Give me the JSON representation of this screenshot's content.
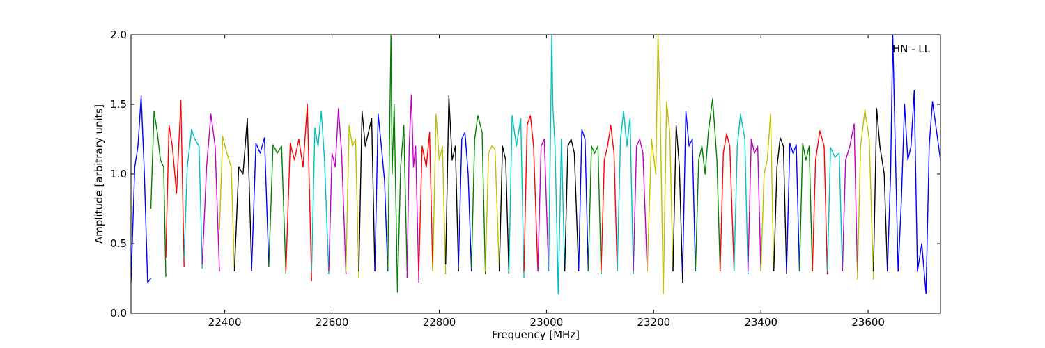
{
  "chart_data": {
    "type": "line",
    "title": "",
    "xlabel": "Frequency [MHz]",
    "ylabel": "Amplitude [arbitrary units]",
    "xlim": [
      22225,
      23735
    ],
    "ylim": [
      0.0,
      2.0
    ],
    "xticks": [
      22400,
      22600,
      22800,
      23000,
      23200,
      23400,
      23600
    ],
    "xtick_labels": [
      "22400",
      "22600",
      "22800",
      "23000",
      "23200",
      "23400",
      "23600"
    ],
    "yticks": [
      0.0,
      0.5,
      1.0,
      1.5,
      2.0
    ],
    "ytick_labels": [
      "0.0",
      "0.5",
      "1.0",
      "1.5",
      "2.0"
    ],
    "grid": false,
    "legend": "none",
    "annotation": "HN - LL",
    "color_cycle": [
      "#0000ff",
      "#008000",
      "#ff0000",
      "#00bfbf",
      "#bf00bf",
      "#bfbf00",
      "#000000"
    ],
    "segments": [
      {
        "color": "#0000ff",
        "x": [
          22225,
          22232,
          22238,
          22244,
          22250,
          22256,
          22262
        ],
        "y": [
          0.22,
          1.05,
          1.2,
          1.56,
          1.0,
          0.22,
          0.25
        ]
      },
      {
        "color": "#008000",
        "x": [
          22262,
          22268,
          22274,
          22280,
          22286,
          22290
        ],
        "y": [
          0.75,
          1.45,
          1.3,
          1.1,
          1.05,
          0.26
        ]
      },
      {
        "color": "#ff0000",
        "x": [
          22290,
          22296,
          22302,
          22310,
          22318,
          22324
        ],
        "y": [
          0.4,
          1.35,
          1.2,
          0.86,
          1.53,
          0.33
        ]
      },
      {
        "color": "#00bfbf",
        "x": [
          22324,
          22330,
          22338,
          22344,
          22352,
          22358
        ],
        "y": [
          0.4,
          1.05,
          1.32,
          1.25,
          1.2,
          0.32
        ]
      },
      {
        "color": "#bf00bf",
        "x": [
          22358,
          22366,
          22374,
          22382,
          22390
        ],
        "y": [
          0.35,
          1.05,
          1.43,
          1.2,
          0.3
        ]
      },
      {
        "color": "#bfbf00",
        "x": [
          22390,
          22396,
          22404,
          22412,
          22418
        ],
        "y": [
          0.6,
          1.27,
          1.15,
          1.05,
          0.3
        ]
      },
      {
        "color": "#000000",
        "x": [
          22418,
          22426,
          22434,
          22442,
          22450
        ],
        "y": [
          0.3,
          1.05,
          1.0,
          1.4,
          0.33
        ]
      },
      {
        "color": "#0000ff",
        "x": [
          22450,
          22458,
          22466,
          22474,
          22482
        ],
        "y": [
          0.3,
          1.22,
          1.15,
          1.26,
          0.35
        ]
      },
      {
        "color": "#008000",
        "x": [
          22482,
          22490,
          22498,
          22506,
          22514
        ],
        "y": [
          0.33,
          1.21,
          1.15,
          1.2,
          0.28
        ]
      },
      {
        "color": "#ff0000",
        "x": [
          22514,
          22522,
          22530,
          22538,
          22546,
          22554,
          22562
        ],
        "y": [
          0.3,
          1.22,
          1.1,
          1.25,
          1.05,
          1.5,
          0.23
        ]
      },
      {
        "color": "#00bfbf",
        "x": [
          22562,
          22568,
          22574,
          22580,
          22586,
          22594
        ],
        "y": [
          0.3,
          1.33,
          1.2,
          1.45,
          1.1,
          0.28
        ]
      },
      {
        "color": "#bf00bf",
        "x": [
          22594,
          22600,
          22606,
          22612,
          22618,
          22626
        ],
        "y": [
          0.3,
          1.15,
          1.05,
          1.47,
          1.15,
          0.28
        ]
      },
      {
        "color": "#bfbf00",
        "x": [
          22626,
          22632,
          22638,
          22644,
          22650
        ],
        "y": [
          0.3,
          1.35,
          1.2,
          1.25,
          0.25
        ]
      },
      {
        "color": "#000000",
        "x": [
          22650,
          22656,
          22662,
          22668,
          22674,
          22680
        ],
        "y": [
          0.3,
          1.45,
          1.2,
          1.3,
          1.4,
          0.3
        ]
      },
      {
        "color": "#0000ff",
        "x": [
          22680,
          22686,
          22692,
          22698,
          22704
        ],
        "y": [
          0.3,
          1.43,
          1.2,
          0.95,
          0.3
        ]
      },
      {
        "color": "#008000",
        "x": [
          22704,
          22708,
          22710,
          22712,
          22716,
          22722,
          22728,
          22734,
          22740
        ],
        "y": [
          0.3,
          1.45,
          2.0,
          1.0,
          1.5,
          0.15,
          1.05,
          1.35,
          0.3
        ]
      },
      {
        "color": "#bf00bf",
        "x": [
          22740,
          22744,
          22748,
          22752,
          22756,
          22762
        ],
        "y": [
          0.25,
          1.2,
          1.57,
          1.05,
          1.2,
          0.22
        ]
      },
      {
        "color": "#ff0000",
        "x": [
          22762,
          22768,
          22776,
          22782,
          22788
        ],
        "y": [
          0.3,
          1.2,
          1.05,
          1.3,
          0.3
        ]
      },
      {
        "color": "#bfbf00",
        "x": [
          22788,
          22794,
          22800,
          22806,
          22812
        ],
        "y": [
          0.3,
          1.43,
          1.1,
          1.2,
          0.28
        ]
      },
      {
        "color": "#000000",
        "x": [
          22812,
          22818,
          22824,
          22830,
          22836
        ],
        "y": [
          0.35,
          1.56,
          1.1,
          1.2,
          0.3
        ]
      },
      {
        "color": "#0000ff",
        "x": [
          22836,
          22842,
          22848,
          22854,
          22860
        ],
        "y": [
          0.35,
          1.25,
          1.3,
          1.0,
          0.3
        ]
      },
      {
        "color": "#008000",
        "x": [
          22860,
          22866,
          22872,
          22880,
          22886
        ],
        "y": [
          0.32,
          1.25,
          1.42,
          1.3,
          0.28
        ]
      },
      {
        "color": "#bfbf00",
        "x": [
          22886,
          22892,
          22898,
          22904,
          22912
        ],
        "y": [
          0.3,
          1.15,
          1.2,
          1.18,
          0.3
        ]
      },
      {
        "color": "#000000",
        "x": [
          22912,
          22918,
          22924,
          22930
        ],
        "y": [
          0.3,
          1.2,
          1.1,
          0.28
        ]
      },
      {
        "color": "#00bfbf",
        "x": [
          22930,
          22936,
          22944,
          22952,
          22958
        ],
        "y": [
          0.3,
          1.42,
          1.2,
          1.4,
          0.25
        ]
      },
      {
        "color": "#ff0000",
        "x": [
          22958,
          22964,
          22970,
          22976,
          22984
        ],
        "y": [
          0.3,
          1.35,
          1.42,
          1.2,
          0.3
        ]
      },
      {
        "color": "#bf00bf",
        "x": [
          22984,
          22990,
          22996,
          23004
        ],
        "y": [
          0.3,
          1.2,
          1.25,
          0.3
        ]
      },
      {
        "color": "#00bfbf",
        "x": [
          23004,
          23008,
          23010,
          23012,
          23016,
          23022,
          23028,
          23034
        ],
        "y": [
          0.3,
          1.4,
          2.0,
          1.48,
          1.2,
          0.14,
          1.25,
          0.3
        ]
      },
      {
        "color": "#000000",
        "x": [
          23034,
          23040,
          23046,
          23052,
          23060
        ],
        "y": [
          0.3,
          1.2,
          1.25,
          1.15,
          0.3
        ]
      },
      {
        "color": "#0000ff",
        "x": [
          23060,
          23066,
          23072,
          23078
        ],
        "y": [
          0.3,
          1.32,
          1.25,
          0.3
        ]
      },
      {
        "color": "#008000",
        "x": [
          23078,
          23084,
          23090,
          23096,
          23102
        ],
        "y": [
          0.3,
          1.2,
          1.15,
          1.2,
          0.28
        ]
      },
      {
        "color": "#ff0000",
        "x": [
          23102,
          23108,
          23114,
          23120,
          23126,
          23132
        ],
        "y": [
          0.3,
          1.1,
          1.2,
          1.35,
          1.15,
          0.3
        ]
      },
      {
        "color": "#00bfbf",
        "x": [
          23132,
          23138,
          23144,
          23150,
          23156,
          23162
        ],
        "y": [
          0.3,
          1.25,
          1.45,
          1.2,
          1.4,
          0.28
        ]
      },
      {
        "color": "#bf00bf",
        "x": [
          23162,
          23168,
          23174,
          23180,
          23188
        ],
        "y": [
          0.3,
          1.2,
          1.25,
          1.15,
          0.3
        ]
      },
      {
        "color": "#bfbf00",
        "x": [
          23188,
          23196,
          23204,
          23208,
          23212,
          23218,
          23224,
          23230,
          23236
        ],
        "y": [
          0.3,
          1.25,
          1.0,
          2.0,
          1.5,
          0.14,
          1.52,
          1.3,
          0.3
        ]
      },
      {
        "color": "#000000",
        "x": [
          23236,
          23242,
          23248,
          23254
        ],
        "y": [
          0.3,
          1.35,
          1.05,
          0.22
        ]
      },
      {
        "color": "#0000ff",
        "x": [
          23254,
          23260,
          23266,
          23272,
          23278
        ],
        "y": [
          0.3,
          1.45,
          1.2,
          1.25,
          0.3
        ]
      },
      {
        "color": "#008000",
        "x": [
          23278,
          23284,
          23290,
          23296,
          23302,
          23310,
          23318,
          23324
        ],
        "y": [
          0.3,
          1.1,
          1.2,
          1.0,
          1.3,
          1.54,
          1.1,
          0.3
        ]
      },
      {
        "color": "#ff0000",
        "x": [
          23324,
          23330,
          23336,
          23342,
          23350
        ],
        "y": [
          0.3,
          1.15,
          1.29,
          1.2,
          0.3
        ]
      },
      {
        "color": "#00bfbf",
        "x": [
          23350,
          23356,
          23362,
          23370,
          23376
        ],
        "y": [
          0.3,
          1.2,
          1.43,
          1.25,
          0.28
        ]
      },
      {
        "color": "#bf00bf",
        "x": [
          23376,
          23382,
          23388,
          23394,
          23400
        ],
        "y": [
          0.3,
          1.25,
          1.15,
          1.2,
          0.3
        ]
      },
      {
        "color": "#bfbf00",
        "x": [
          23400,
          23406,
          23412,
          23418,
          23424
        ],
        "y": [
          0.3,
          1.0,
          1.1,
          1.43,
          0.3
        ]
      },
      {
        "color": "#000000",
        "x": [
          23424,
          23430,
          23436,
          23442,
          23448
        ],
        "y": [
          0.3,
          1.05,
          1.26,
          1.2,
          0.28
        ]
      },
      {
        "color": "#0000ff",
        "x": [
          23448,
          23454,
          23460,
          23466,
          23472
        ],
        "y": [
          0.3,
          1.22,
          1.15,
          1.21,
          0.3
        ]
      },
      {
        "color": "#008000",
        "x": [
          23472,
          23478,
          23484,
          23490,
          23496
        ],
        "y": [
          0.3,
          1.22,
          1.1,
          1.2,
          0.3
        ]
      },
      {
        "color": "#ff0000",
        "x": [
          23496,
          23502,
          23510,
          23518,
          23524
        ],
        "y": [
          0.3,
          1.1,
          1.31,
          1.2,
          0.28
        ]
      },
      {
        "color": "#00bfbf",
        "x": [
          23524,
          23530,
          23538,
          23546,
          23552
        ],
        "y": [
          0.3,
          1.19,
          1.12,
          1.15,
          0.3
        ]
      },
      {
        "color": "#bf00bf",
        "x": [
          23552,
          23558,
          23566,
          23574,
          23580
        ],
        "y": [
          0.3,
          1.1,
          1.2,
          1.36,
          0.3
        ]
      },
      {
        "color": "#bfbf00",
        "x": [
          23580,
          23586,
          23594,
          23602,
          23610
        ],
        "y": [
          0.24,
          1.2,
          1.46,
          1.25,
          0.24
        ]
      },
      {
        "color": "#000000",
        "x": [
          23610,
          23616,
          23622,
          23630,
          23636
        ],
        "y": [
          0.3,
          1.47,
          1.2,
          1.0,
          0.3
        ]
      },
      {
        "color": "#0000ff",
        "x": [
          23636,
          23642,
          23646,
          23650,
          23656,
          23662,
          23668,
          23674,
          23680,
          23686,
          23692,
          23700,
          23708,
          23714,
          23720,
          23728,
          23735
        ],
        "y": [
          0.3,
          1.0,
          2.0,
          1.3,
          0.3,
          0.8,
          1.5,
          1.1,
          1.2,
          1.6,
          0.3,
          0.5,
          0.14,
          1.2,
          1.52,
          1.3,
          1.1
        ]
      }
    ]
  }
}
